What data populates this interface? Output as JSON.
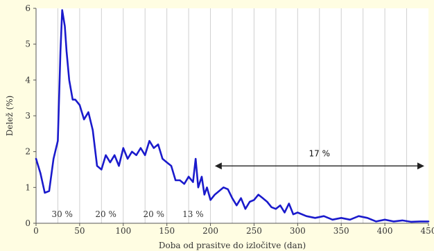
{
  "chart_data": {
    "type": "line",
    "title": "",
    "xlabel": "Doba od prasitve do izločitve (dan)",
    "ylabel": "Delež (%)",
    "xlim": [
      0,
      450
    ],
    "ylim": [
      0,
      6
    ],
    "xticks": [
      0,
      50,
      100,
      150,
      200,
      250,
      300,
      350,
      400,
      450
    ],
    "yticks": [
      0,
      1,
      2,
      3,
      4,
      5,
      6
    ],
    "grid": "vertical lines every 25 days",
    "series": [
      {
        "color": "#1a1acc",
        "x": [
          0,
          5,
          10,
          15,
          20,
          25,
          28,
          30,
          33,
          35,
          38,
          42,
          45,
          50,
          55,
          60,
          65,
          70,
          75,
          80,
          85,
          90,
          95,
          100,
          105,
          110,
          115,
          120,
          125,
          130,
          135,
          140,
          145,
          150,
          155,
          160,
          165,
          170,
          175,
          180,
          183,
          186,
          190,
          193,
          196,
          200,
          205,
          210,
          215,
          220,
          225,
          230,
          235,
          240,
          245,
          250,
          255,
          260,
          265,
          270,
          275,
          280,
          285,
          290,
          295,
          300,
          310,
          320,
          330,
          340,
          350,
          360,
          370,
          380,
          390,
          400,
          410,
          420,
          430,
          440,
          450
        ],
        "y": [
          1.8,
          1.4,
          0.85,
          0.9,
          1.8,
          2.3,
          4.8,
          5.95,
          5.5,
          4.8,
          4.0,
          3.45,
          3.45,
          3.3,
          2.9,
          3.1,
          2.6,
          1.6,
          1.5,
          1.9,
          1.7,
          1.9,
          1.6,
          2.1,
          1.8,
          2.0,
          1.9,
          2.1,
          1.9,
          2.3,
          2.1,
          2.2,
          1.8,
          1.7,
          1.6,
          1.2,
          1.2,
          1.1,
          1.3,
          1.15,
          1.8,
          1.0,
          1.3,
          0.8,
          1.0,
          0.65,
          0.8,
          0.9,
          1.0,
          0.95,
          0.7,
          0.5,
          0.7,
          0.4,
          0.6,
          0.65,
          0.8,
          0.7,
          0.6,
          0.45,
          0.4,
          0.5,
          0.3,
          0.55,
          0.25,
          0.3,
          0.2,
          0.15,
          0.2,
          0.1,
          0.15,
          0.1,
          0.2,
          0.15,
          0.05,
          0.1,
          0.05,
          0.08,
          0.04,
          0.05,
          0.05
        ]
      }
    ],
    "annotations": [
      {
        "text": "30 %",
        "x": 30,
        "y": 0.25
      },
      {
        "text": "20 %",
        "x": 80,
        "y": 0.25
      },
      {
        "text": "20 %",
        "x": 135,
        "y": 0.25
      },
      {
        "text": "13 %",
        "x": 180,
        "y": 0.25
      },
      {
        "text": "17 %",
        "x": 325,
        "y": 1.95
      }
    ],
    "arrow": {
      "x_from": 205,
      "x_to": 450,
      "y": 1.6
    }
  }
}
